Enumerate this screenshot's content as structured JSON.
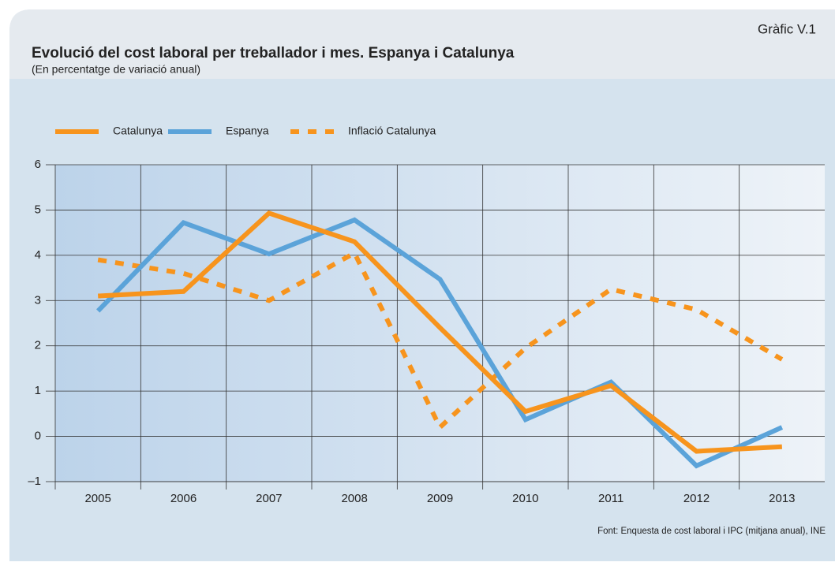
{
  "chart_data": {
    "type": "line",
    "figure_label": "Gràfic V.1",
    "title": "Evolució del cost laboral per treballador i mes. Espanya i Catalunya",
    "subtitle": "(En percentatge de variació anual)",
    "source": "Font: Enquesta de cost laboral i IPC (mitjana anual), INE",
    "categories": [
      "2005",
      "2006",
      "2007",
      "2008",
      "2009",
      "2010",
      "2011",
      "2012",
      "2013"
    ],
    "series": [
      {
        "name": "Catalunya",
        "color": "#f7941d",
        "dash": false,
        "values": [
          3.1,
          3.2,
          4.93,
          4.3,
          2.4,
          0.55,
          1.12,
          -0.33,
          -0.23
        ]
      },
      {
        "name": "Espanya",
        "color": "#5ba3d9",
        "dash": false,
        "values": [
          2.77,
          4.72,
          4.03,
          4.78,
          3.47,
          0.37,
          1.2,
          -0.65,
          0.2
        ]
      },
      {
        "name": "Inflació Catalunya",
        "color": "#f7941d",
        "dash": true,
        "values": [
          3.9,
          3.6,
          3.0,
          4.05,
          0.2,
          1.95,
          3.25,
          2.8,
          1.7
        ]
      }
    ],
    "ylim": [
      -1,
      6
    ],
    "yticks": [
      {
        "value": -1,
        "label": "–1"
      },
      0,
      1,
      2,
      3,
      4,
      5,
      6
    ],
    "grid": true
  }
}
